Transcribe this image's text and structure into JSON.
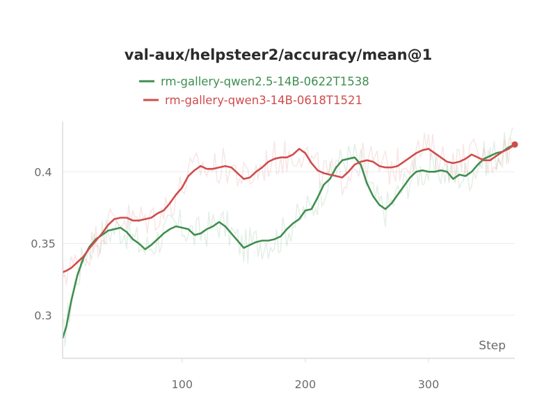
{
  "chart_data": {
    "type": "line",
    "title": "val-aux/helpsteer2/accuracy/mean@1",
    "xlabel": "Step",
    "ylabel": "",
    "xlim": [
      3,
      370
    ],
    "ylim": [
      0.27,
      0.435
    ],
    "xticks": [
      100,
      200,
      300
    ],
    "yticks": [
      0.3,
      0.35,
      0.4
    ],
    "grid": true,
    "legend_position": "top-center",
    "series": [
      {
        "name": "rm-gallery-qwen2.5-14B-0622T1538",
        "color": "#3f8f4f",
        "x": [
          3,
          6,
          10,
          15,
          20,
          25,
          30,
          35,
          40,
          45,
          50,
          55,
          60,
          65,
          70,
          75,
          80,
          85,
          90,
          95,
          100,
          105,
          110,
          115,
          120,
          125,
          130,
          135,
          140,
          145,
          150,
          155,
          160,
          165,
          170,
          175,
          180,
          185,
          190,
          195,
          200,
          205,
          210,
          215,
          220,
          225,
          230,
          235,
          240,
          245,
          250,
          255,
          260,
          265,
          270,
          275,
          280,
          285,
          290,
          295,
          300,
          305,
          310,
          315,
          320,
          325,
          330,
          335,
          340,
          345,
          350,
          355,
          360,
          365,
          370
        ],
        "y": [
          0.284,
          0.292,
          0.31,
          0.328,
          0.34,
          0.348,
          0.353,
          0.356,
          0.359,
          0.36,
          0.361,
          0.358,
          0.353,
          0.35,
          0.346,
          0.349,
          0.353,
          0.357,
          0.36,
          0.362,
          0.361,
          0.36,
          0.356,
          0.357,
          0.36,
          0.362,
          0.365,
          0.362,
          0.357,
          0.352,
          0.347,
          0.349,
          0.351,
          0.352,
          0.352,
          0.353,
          0.355,
          0.36,
          0.364,
          0.367,
          0.373,
          0.374,
          0.382,
          0.391,
          0.395,
          0.403,
          0.408,
          0.409,
          0.41,
          0.405,
          0.392,
          0.383,
          0.377,
          0.374,
          0.378,
          0.384,
          0.39,
          0.396,
          0.4,
          0.401,
          0.4,
          0.4,
          0.401,
          0.4,
          0.395,
          0.398,
          0.397,
          0.4,
          0.405,
          0.409,
          0.411,
          0.413,
          0.414,
          0.417,
          0.419
        ]
      },
      {
        "name": "rm-gallery-qwen3-14B-0618T1521",
        "color": "#d04c4c",
        "x": [
          3,
          6,
          10,
          15,
          20,
          25,
          30,
          35,
          40,
          45,
          50,
          55,
          60,
          65,
          70,
          75,
          80,
          85,
          90,
          95,
          100,
          105,
          110,
          115,
          120,
          125,
          130,
          135,
          140,
          145,
          150,
          155,
          160,
          165,
          170,
          175,
          180,
          185,
          190,
          195,
          200,
          205,
          210,
          215,
          220,
          225,
          230,
          235,
          240,
          245,
          250,
          255,
          260,
          265,
          270,
          275,
          280,
          285,
          290,
          295,
          300,
          305,
          310,
          315,
          320,
          325,
          330,
          335,
          340,
          345,
          350,
          355,
          360,
          365,
          370
        ],
        "y": [
          0.33,
          0.331,
          0.333,
          0.337,
          0.341,
          0.347,
          0.352,
          0.357,
          0.363,
          0.367,
          0.368,
          0.368,
          0.366,
          0.366,
          0.367,
          0.368,
          0.371,
          0.373,
          0.378,
          0.384,
          0.389,
          0.397,
          0.401,
          0.404,
          0.402,
          0.402,
          0.403,
          0.404,
          0.403,
          0.399,
          0.395,
          0.396,
          0.4,
          0.403,
          0.407,
          0.409,
          0.41,
          0.41,
          0.412,
          0.416,
          0.413,
          0.406,
          0.401,
          0.399,
          0.398,
          0.397,
          0.396,
          0.4,
          0.405,
          0.407,
          0.408,
          0.407,
          0.404,
          0.403,
          0.403,
          0.404,
          0.407,
          0.41,
          0.413,
          0.415,
          0.416,
          0.413,
          0.41,
          0.407,
          0.406,
          0.407,
          0.409,
          0.412,
          0.41,
          0.408,
          0.408,
          0.411,
          0.414,
          0.416,
          0.419
        ]
      }
    ]
  }
}
